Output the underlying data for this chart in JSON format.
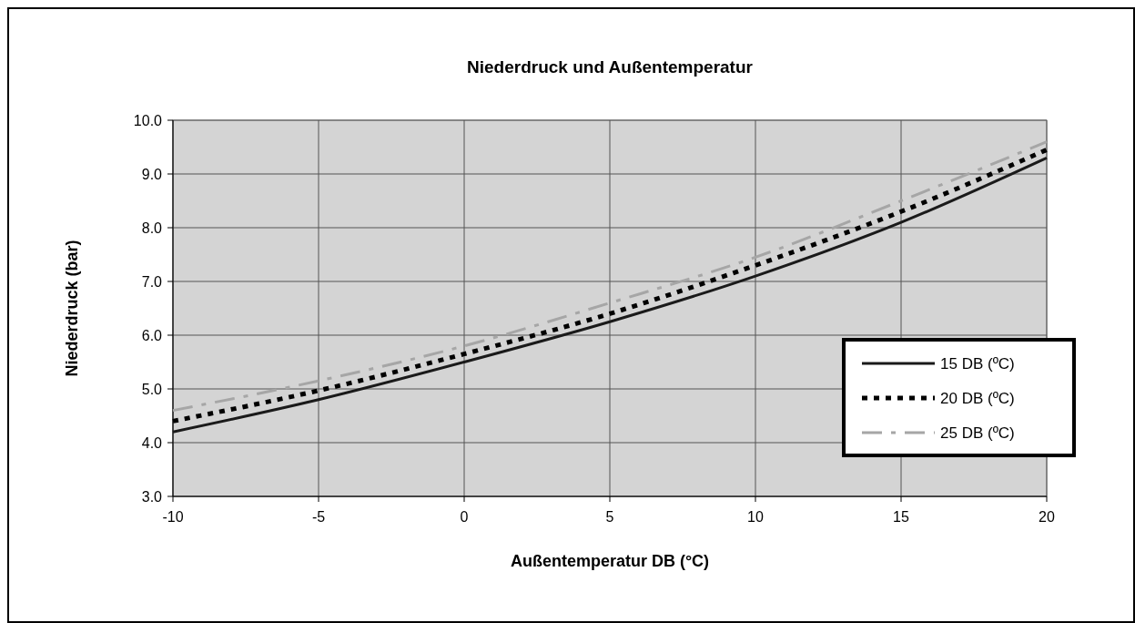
{
  "chart_data": {
    "type": "line",
    "title": "Niederdruck und Außentemperatur",
    "xlabel": "Außentemperatur DB (°C)",
    "ylabel": "Niederdruck (bar)",
    "x": [
      -10,
      -5,
      0,
      5,
      10,
      15,
      20
    ],
    "series": [
      {
        "name": "15 DB (ºC)",
        "color": "#1a1a1a",
        "line_style": "solid",
        "values": [
          4.2,
          4.8,
          5.5,
          6.25,
          7.1,
          8.1,
          9.3
        ]
      },
      {
        "name": "20 DB (ºC)",
        "color": "#000000",
        "line_style": "dotted",
        "values": [
          4.4,
          4.97,
          5.65,
          6.4,
          7.3,
          8.3,
          9.45
        ]
      },
      {
        "name": "25 DB (ºC)",
        "color": "#a6a6a6",
        "line_style": "dashed",
        "values": [
          4.6,
          5.15,
          5.8,
          6.6,
          7.45,
          8.5,
          9.6
        ]
      }
    ],
    "xlim": [
      -10,
      20
    ],
    "xticks": [
      -10,
      -5,
      0,
      5,
      10,
      15,
      20
    ],
    "ylim": [
      3,
      10
    ],
    "yticks": [
      {
        "value": 3,
        "label": "3.0"
      },
      {
        "value": 4,
        "label": "4.0"
      },
      {
        "value": 5,
        "label": "5.0"
      },
      {
        "value": 6,
        "label": "6.0"
      },
      {
        "value": 7,
        "label": "7.0"
      },
      {
        "value": 8,
        "label": "8.0"
      },
      {
        "value": 9,
        "label": "9.0"
      },
      {
        "value": 10,
        "label": "10.0"
      }
    ],
    "grid": true,
    "legend": "right"
  }
}
